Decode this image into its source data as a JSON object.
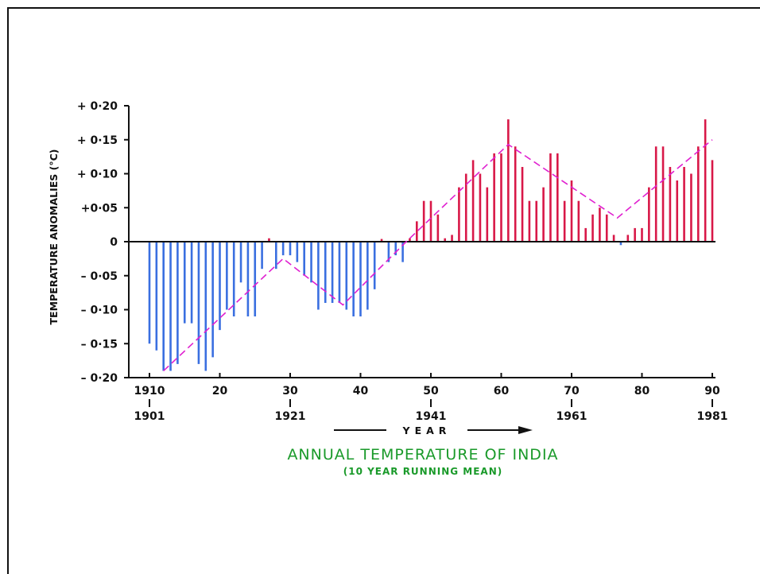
{
  "chart_data": {
    "type": "bar",
    "title": "ANNUAL TEMPERATURE OF INDIA",
    "subtitle": "(10 YEAR RUNNING MEAN)",
    "ylabel": "TEMPERATURE ANOMALIES (°C)",
    "xlabel": "YEAR",
    "ylim": [
      -0.2,
      0.2
    ],
    "xlim": [
      1910,
      1990
    ],
    "y_ticks": [
      {
        "value": 0.2,
        "label": "+ 0·20"
      },
      {
        "value": 0.15,
        "label": "+ 0·15"
      },
      {
        "value": 0.1,
        "label": "+ 0·10"
      },
      {
        "value": 0.05,
        "label": "+0·05"
      },
      {
        "value": 0,
        "label": "0"
      },
      {
        "value": -0.05,
        "label": "– 0·05"
      },
      {
        "value": -0.1,
        "label": "– 0·10"
      },
      {
        "value": -0.15,
        "label": "– 0·15"
      },
      {
        "value": -0.2,
        "label": "– 0·20"
      }
    ],
    "x_ticks": [
      {
        "value": 1910,
        "label": "1910",
        "sublabel": "1901"
      },
      {
        "value": 1920,
        "label": "20",
        "sublabel": ""
      },
      {
        "value": 1930,
        "label": "30",
        "sublabel": "1921"
      },
      {
        "value": 1940,
        "label": "40",
        "sublabel": ""
      },
      {
        "value": 1950,
        "label": "50",
        "sublabel": "1941"
      },
      {
        "value": 1960,
        "label": "60",
        "sublabel": ""
      },
      {
        "value": 1970,
        "label": "70",
        "sublabel": "1961"
      },
      {
        "value": 1980,
        "label": "80",
        "sublabel": ""
      },
      {
        "value": 1990,
        "label": "90",
        "sublabel": "1981"
      }
    ],
    "x": [
      1910,
      1911,
      1912,
      1913,
      1914,
      1915,
      1916,
      1917,
      1918,
      1919,
      1920,
      1921,
      1922,
      1923,
      1924,
      1925,
      1926,
      1927,
      1928,
      1929,
      1930,
      1931,
      1932,
      1933,
      1934,
      1935,
      1936,
      1937,
      1938,
      1939,
      1940,
      1941,
      1942,
      1943,
      1944,
      1945,
      1946,
      1947,
      1948,
      1949,
      1950,
      1951,
      1952,
      1953,
      1954,
      1955,
      1956,
      1957,
      1958,
      1959,
      1960,
      1961,
      1962,
      1963,
      1964,
      1965,
      1966,
      1967,
      1968,
      1969,
      1970,
      1971,
      1972,
      1973,
      1974,
      1975,
      1976,
      1977,
      1978,
      1979,
      1980,
      1981,
      1982,
      1983,
      1984,
      1985,
      1986,
      1987,
      1988,
      1989,
      1990
    ],
    "values": [
      -0.15,
      -0.16,
      -0.19,
      -0.19,
      -0.18,
      -0.12,
      -0.12,
      -0.18,
      -0.19,
      -0.17,
      -0.13,
      -0.1,
      -0.11,
      -0.06,
      -0.11,
      -0.11,
      -0.04,
      0.005,
      -0.04,
      -0.02,
      -0.02,
      -0.03,
      -0.05,
      -0.06,
      -0.1,
      -0.09,
      -0.09,
      -0.09,
      -0.1,
      -0.11,
      -0.11,
      -0.1,
      -0.07,
      0.004,
      -0.03,
      -0.02,
      -0.03,
      0.005,
      0.03,
      0.06,
      0.06,
      0.04,
      0.005,
      0.01,
      0.08,
      0.1,
      0.12,
      0.1,
      0.08,
      0.13,
      0.13,
      0.18,
      0.14,
      0.11,
      0.06,
      0.06,
      0.08,
      0.13,
      0.13,
      0.06,
      0.09,
      0.06,
      0.02,
      0.04,
      0.05,
      0.04,
      0.01,
      -0.005,
      0.01,
      0.02,
      0.02,
      0.08,
      0.14,
      0.14,
      0.11,
      0.09,
      0.11,
      0.1,
      0.14,
      0.18,
      0.12
    ],
    "trend": {
      "name": "",
      "x": [
        1912,
        1929,
        1937.5,
        1946.5,
        1961,
        1976.5,
        1990
      ],
      "y": [
        -0.19,
        -0.025,
        -0.093,
        0,
        0.143,
        0.035,
        0.15
      ]
    },
    "colors": {
      "positive": "#d81848",
      "negative": "#3a6fe0",
      "trend": "#e020d0",
      "axis": "#111111",
      "title": "#1a9a2a"
    }
  }
}
